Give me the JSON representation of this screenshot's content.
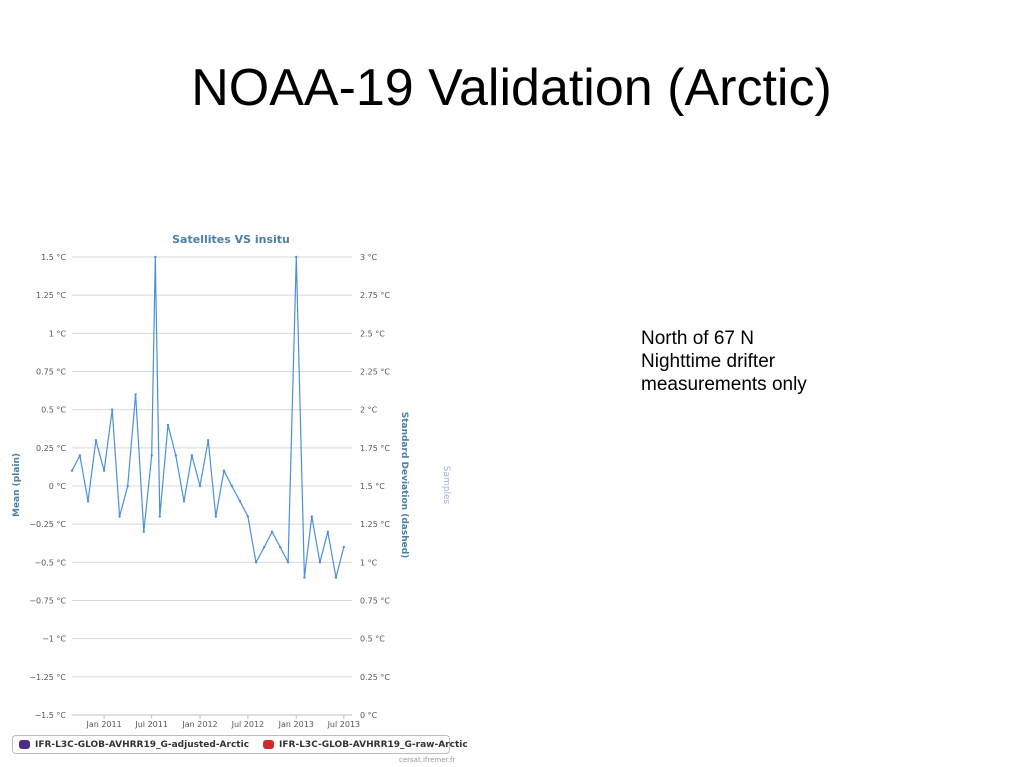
{
  "slide": {
    "title": "NOAA-19 Validation (Arctic)",
    "notes": [
      "North of 67 N",
      "Nighttime drifter",
      "measurements only"
    ]
  },
  "credit": "cersat.ifremer.fr",
  "colors": {
    "series": "#4a8fdc",
    "axis_label": "#4a7fa8",
    "samples_label": "#9fb4d6",
    "grid": "#d8d8d8"
  },
  "chart_data": {
    "type": "line",
    "title": "Satellites VS insitu",
    "xlabel": "",
    "ylabel": "Mean (plain)",
    "ylabel_right": "Standard Deviation (dashed)",
    "ylabel_right2": "Samples",
    "xlim": [
      "2010-09-01",
      "2013-08-01"
    ],
    "ylim": [
      -1.5,
      1.5
    ],
    "ylim_right": [
      0,
      3
    ],
    "x_ticks": [
      "Jan 2011",
      "Jul 2011",
      "Jan 2012",
      "Jul 2012",
      "Jan 2013",
      "Jul 2013"
    ],
    "y_ticks": [
      "1.5 °C",
      "1.25 °C",
      "1 °C",
      "0.75 °C",
      "0.5 °C",
      "0.25 °C",
      "0 °C",
      "−0.25 °C",
      "−0.5 °C",
      "−0.75 °C",
      "−1 °C",
      "−1.25 °C",
      "−1.5 °C"
    ],
    "y_ticks_right": [
      "3 °C",
      "2.75 °C",
      "2.5 °C",
      "2.25 °C",
      "2 °C",
      "1.75 °C",
      "1.5 °C",
      "1.25 °C",
      "1 °C",
      "0.75 °C",
      "0.5 °C",
      "0.25 °C",
      "0 °C"
    ],
    "grid": true,
    "legend_position": "bottom",
    "series": [
      {
        "name": "IFR-L3C-GLOB-AVHRR19_G-adjusted-Arctic",
        "color": "#4b2d83",
        "x": [
          "2010-09-01",
          "2010-10-01",
          "2010-11-01",
          "2010-12-01",
          "2011-01-01",
          "2011-02-01",
          "2011-03-01",
          "2011-04-01",
          "2011-05-01",
          "2011-06-01",
          "2011-07-01",
          "2011-07-15",
          "2011-08-01",
          "2011-09-01",
          "2011-10-01",
          "2011-11-01",
          "2011-12-01",
          "2012-01-01",
          "2012-02-01",
          "2012-03-01",
          "2012-04-01",
          "2012-05-01",
          "2012-06-01",
          "2012-07-01",
          "2012-08-01",
          "2012-09-01",
          "2012-10-01",
          "2012-11-01",
          "2012-12-01",
          "2013-01-01",
          "2013-02-01",
          "2013-03-01",
          "2013-04-01",
          "2013-05-01",
          "2013-06-01",
          "2013-07-01"
        ],
        "values": [
          0.1,
          0.2,
          -0.1,
          0.3,
          0.1,
          0.5,
          -0.2,
          0.0,
          0.6,
          -0.3,
          0.2,
          1.5,
          -0.2,
          0.4,
          0.2,
          -0.1,
          0.2,
          0.0,
          0.3,
          -0.2,
          0.1,
          0.0,
          -0.1,
          -0.2,
          -0.5,
          -0.4,
          -0.3,
          -0.4,
          -0.5,
          1.5,
          -0.6,
          -0.2,
          -0.5,
          -0.3,
          -0.6,
          -0.4
        ]
      },
      {
        "name": "IFR-L3C-GLOB-AVHRR19_G-raw-Arctic",
        "color": "#cc2b2b",
        "x": [],
        "values": []
      }
    ]
  }
}
